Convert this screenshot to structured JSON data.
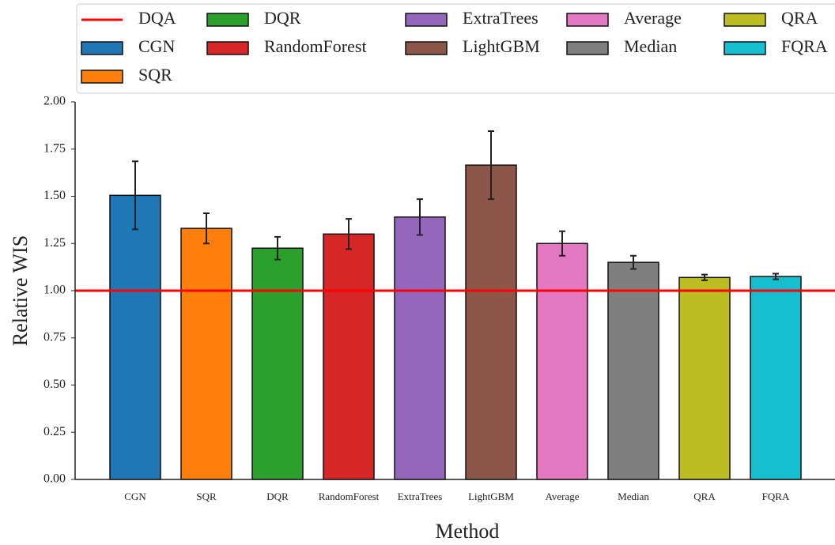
{
  "chart_data": {
    "type": "bar",
    "x_label": "Method",
    "y_label": "Relative WIS",
    "categories": [
      "CGN",
      "SQR",
      "DQR",
      "RandomForest",
      "ExtraTrees",
      "LightGBM",
      "Average",
      "Median",
      "QRA",
      "FQRA"
    ],
    "values": [
      1.505,
      1.33,
      1.225,
      1.3,
      1.39,
      1.665,
      1.25,
      1.15,
      1.07,
      1.075
    ],
    "errors": [
      0.18,
      0.08,
      0.06,
      0.08,
      0.095,
      0.18,
      0.065,
      0.035,
      0.015,
      0.015
    ],
    "colors": [
      "#1f77b4",
      "#ff7f0e",
      "#2ca02c",
      "#d62728",
      "#9467bd",
      "#8c564b",
      "#e377c2",
      "#7f7f7f",
      "#bcbd22",
      "#17becf"
    ],
    "reference_line": {
      "name": "DQA",
      "value": 1,
      "color": "#ff0000"
    },
    "ylim": [
      0,
      2
    ],
    "yticks": [
      {
        "value": 0,
        "label": "0.00"
      },
      {
        "value": 0.25,
        "label": "0.25"
      },
      {
        "value": 0.5,
        "label": "0.50"
      },
      {
        "value": 0.75,
        "label": "0.75"
      },
      {
        "value": 1,
        "label": "1.00"
      },
      {
        "value": 1.25,
        "label": "1.25"
      },
      {
        "value": 1.5,
        "label": "1.50"
      },
      {
        "value": 1.75,
        "label": "1.75"
      },
      {
        "value": 2,
        "label": "2.00"
      }
    ],
    "legend": "top"
  }
}
